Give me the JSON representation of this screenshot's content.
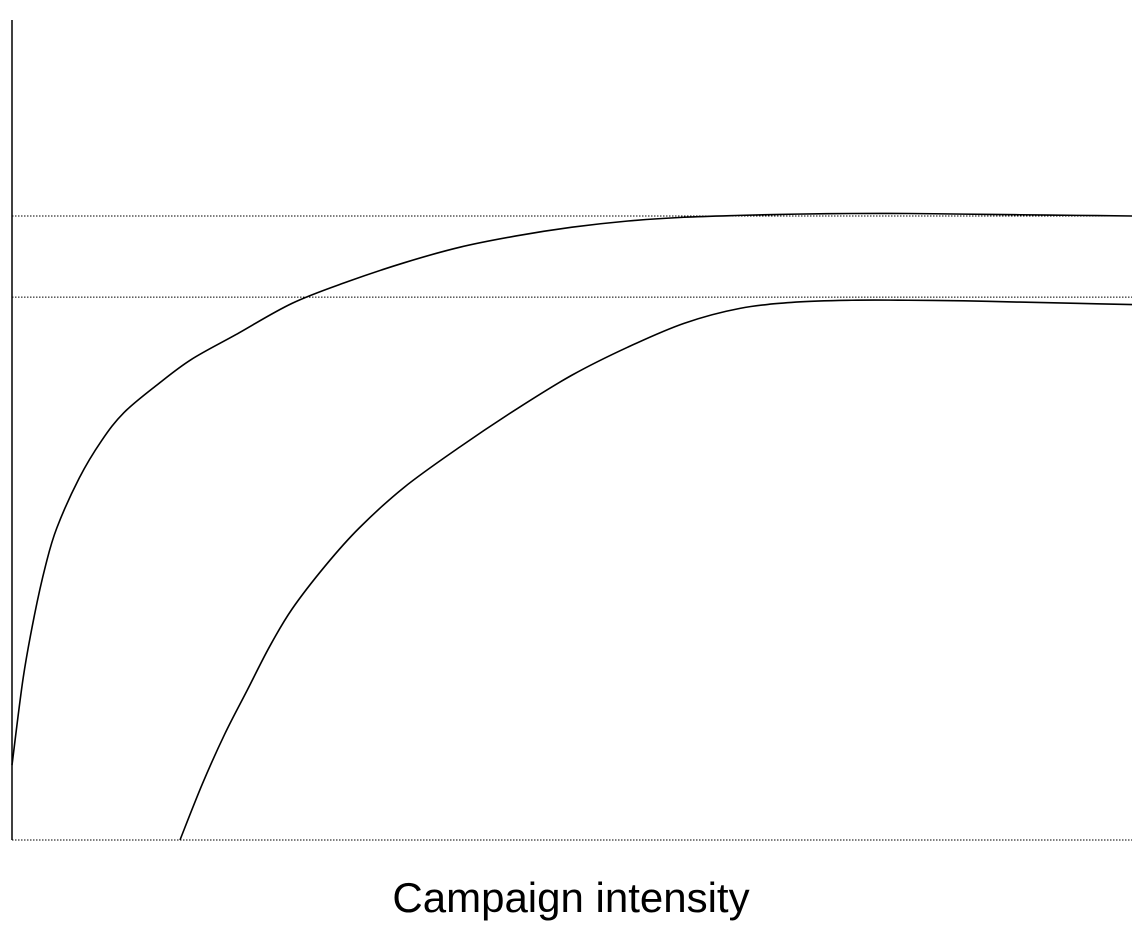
{
  "chart_data": {
    "type": "line",
    "title": "",
    "xlabel": "Campaign intensity",
    "ylabel": "",
    "xlim": [
      0,
      100
    ],
    "ylim": [
      0,
      100
    ],
    "grid": false,
    "reference_lines_y": [
      0,
      87,
      100
    ],
    "series": [
      {
        "x": [
          0,
          1,
          2,
          3,
          4,
          6,
          8,
          10,
          13,
          16,
          20,
          25,
          30,
          35,
          40,
          45,
          50,
          55,
          60,
          65,
          70,
          75,
          80,
          85,
          90,
          95,
          100
        ],
        "y": [
          12,
          26,
          36,
          44,
          50,
          58,
          64,
          68.5,
          73,
          77,
          81,
          86,
          89.5,
          92.5,
          95,
          96.8,
          98.2,
          99.2,
          99.8,
          100.1,
          100.3,
          100.4,
          100.4,
          100.3,
          100.2,
          100.1,
          100
        ]
      },
      {
        "x": [
          15,
          17,
          19,
          21,
          23,
          25,
          28,
          31,
          35,
          40,
          45,
          50,
          55,
          60,
          65,
          70,
          75,
          80,
          85,
          90,
          95,
          100
        ],
        "y": [
          0,
          9,
          17,
          24,
          31,
          37,
          44,
          50,
          56.5,
          63,
          69,
          74.5,
          79,
          82.8,
          85.2,
          86.2,
          86.5,
          86.5,
          86.4,
          86.2,
          86,
          85.8
        ]
      }
    ]
  }
}
